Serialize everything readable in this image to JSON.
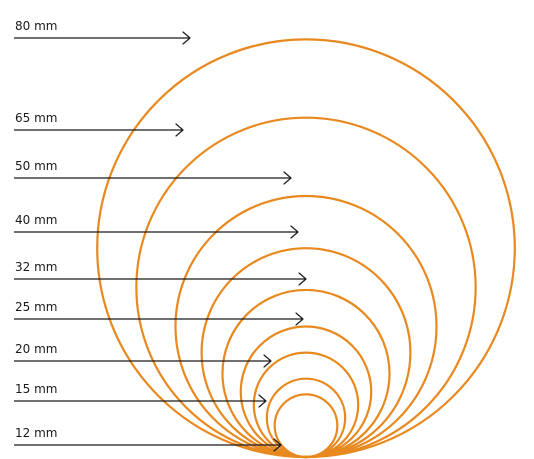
{
  "colors": {
    "circle_stroke": "#e8891f",
    "arrow": "#1a1a1a",
    "label": "#1a1a1a",
    "background": "#ffffff"
  },
  "sizes": [
    {
      "label": "80 mm",
      "diameter_mm": 80
    },
    {
      "label": "65 mm",
      "diameter_mm": 65
    },
    {
      "label": "50 mm",
      "diameter_mm": 50
    },
    {
      "label": "40 mm",
      "diameter_mm": 40
    },
    {
      "label": "32 mm",
      "diameter_mm": 32
    },
    {
      "label": "25 mm",
      "diameter_mm": 25
    },
    {
      "label": "20 mm",
      "diameter_mm": 20
    },
    {
      "label": "15 mm",
      "diameter_mm": 15
    },
    {
      "label": "12 mm",
      "diameter_mm": 12
    }
  ]
}
